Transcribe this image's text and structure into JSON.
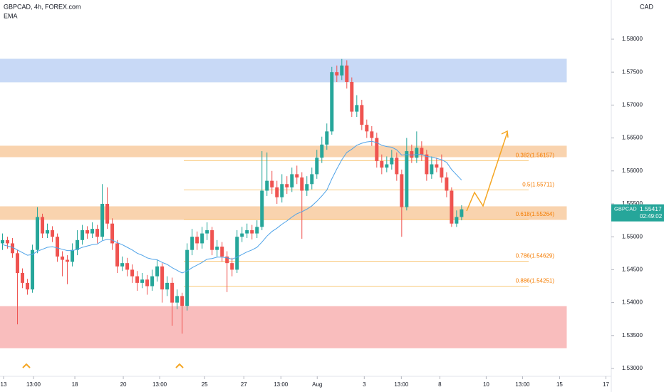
{
  "chart_data": {
    "type": "candlestick",
    "title": "GBPCAD, 4h, FOREX.com",
    "indicator_label": "EMA",
    "axis_title": "CAD",
    "symbol": "GBPCAD",
    "last_price": "1.55417",
    "countdown": "02:49:02",
    "bull_color": "#26a69a",
    "bear_color": "#ef5350",
    "open": [
      1.549,
      1.5495,
      1.549,
      1.5475,
      1.5445,
      1.543,
      1.542,
      1.548,
      1.553,
      1.5505,
      1.551,
      1.55,
      1.547,
      1.5465,
      1.5462,
      1.548,
      1.5495,
      1.551,
      1.5505,
      1.5512,
      1.55,
      1.555,
      1.552,
      1.549,
      1.5455,
      1.546,
      1.545,
      1.544,
      1.543,
      1.5435,
      1.5425,
      1.544,
      1.5455,
      1.542,
      1.543,
      1.54,
      1.541,
      1.5395,
      1.548,
      1.55,
      1.549,
      1.5505,
      1.551,
      1.548,
      1.5485,
      1.547,
      1.546,
      1.545,
      1.55,
      1.5505,
      1.551,
      1.5505,
      1.5515,
      1.557,
      1.5585,
      1.5575,
      1.556,
      1.558,
      1.5575,
      1.5595,
      1.559,
      1.557,
      1.558,
      1.5595,
      1.562,
      1.564,
      1.566,
      1.575,
      1.5745,
      1.576,
      1.5735,
      1.569,
      1.57,
      1.567,
      1.566,
      1.565,
      1.5615,
      1.5605,
      1.561,
      1.562,
      1.5595,
      1.5545,
      1.563,
      1.562,
      1.5635,
      1.5625,
      1.5595,
      1.561,
      1.5605,
      1.559,
      1.557,
      1.552,
      1.553
    ],
    "high": [
      1.5505,
      1.55,
      1.5498,
      1.548,
      1.5452,
      1.5436,
      1.5488,
      1.5545,
      1.5535,
      1.552,
      1.5516,
      1.5505,
      1.5478,
      1.5472,
      1.549,
      1.551,
      1.5518,
      1.5516,
      1.5522,
      1.5518,
      1.558,
      1.5575,
      1.5528,
      1.5495,
      1.547,
      1.5468,
      1.5458,
      1.5448,
      1.5445,
      1.5442,
      1.545,
      1.5465,
      1.546,
      1.544,
      1.5438,
      1.542,
      1.5415,
      1.549,
      1.5512,
      1.5508,
      1.5515,
      1.5522,
      1.5515,
      1.5495,
      1.5492,
      1.5478,
      1.5468,
      1.551,
      1.5515,
      1.552,
      1.5518,
      1.5525,
      1.563,
      1.5628,
      1.56,
      1.5585,
      1.5595,
      1.5592,
      1.5605,
      1.5608,
      1.5598,
      1.5592,
      1.5605,
      1.5632,
      1.5652,
      1.5672,
      1.5758,
      1.576,
      1.577,
      1.5768,
      1.5742,
      1.5715,
      1.5708,
      1.5678,
      1.5668,
      1.5658,
      1.5625,
      1.5622,
      1.5632,
      1.5628,
      1.5602,
      1.565,
      1.564,
      1.566,
      1.5645,
      1.5632,
      1.5622,
      1.562,
      1.5625,
      1.5598,
      1.5575,
      1.554,
      1.5548
    ],
    "low": [
      1.548,
      1.5482,
      1.5468,
      1.5367,
      1.5422,
      1.5412,
      1.5415,
      1.5475,
      1.5498,
      1.5498,
      1.5492,
      1.5462,
      1.544,
      1.5428,
      1.5455,
      1.5472,
      1.5488,
      1.5497,
      1.5498,
      1.549,
      1.5495,
      1.5512,
      1.548,
      1.5445,
      1.5448,
      1.544,
      1.543,
      1.5418,
      1.5422,
      1.5412,
      1.5418,
      1.5432,
      1.54,
      1.541,
      1.5365,
      1.539,
      1.5353,
      1.5388,
      1.5472,
      1.548,
      1.5482,
      1.5495,
      1.5472,
      1.547,
      1.5462,
      1.5416,
      1.544,
      1.5445,
      1.5492,
      1.5498,
      1.5496,
      1.5498,
      1.551,
      1.5562,
      1.5565,
      1.555,
      1.5552,
      1.5565,
      1.5568,
      1.558,
      1.5497,
      1.5562,
      1.5572,
      1.5588,
      1.5612,
      1.5632,
      1.5655,
      1.5735,
      1.5738,
      1.5725,
      1.5682,
      1.5682,
      1.5662,
      1.565,
      1.5638,
      1.5605,
      1.5595,
      1.5598,
      1.5602,
      1.5585,
      1.55,
      1.554,
      1.5612,
      1.5612,
      1.5615,
      1.5585,
      1.5588,
      1.5598,
      1.5582,
      1.556,
      1.5515,
      1.5515,
      1.5525
    ],
    "close": [
      1.5495,
      1.549,
      1.5475,
      1.5445,
      1.543,
      1.542,
      1.548,
      1.553,
      1.5505,
      1.551,
      1.55,
      1.547,
      1.5465,
      1.5462,
      1.548,
      1.5495,
      1.551,
      1.5505,
      1.5512,
      1.55,
      1.555,
      1.552,
      1.549,
      1.5455,
      1.546,
      1.545,
      1.544,
      1.543,
      1.5435,
      1.5425,
      1.544,
      1.5455,
      1.542,
      1.543,
      1.54,
      1.541,
      1.5395,
      1.548,
      1.55,
      1.549,
      1.5505,
      1.551,
      1.548,
      1.5485,
      1.547,
      1.546,
      1.545,
      1.55,
      1.5505,
      1.551,
      1.5505,
      1.5515,
      1.557,
      1.5585,
      1.5575,
      1.556,
      1.558,
      1.5575,
      1.5595,
      1.559,
      1.557,
      1.558,
      1.5595,
      1.562,
      1.564,
      1.566,
      1.575,
      1.5745,
      1.576,
      1.5735,
      1.569,
      1.57,
      1.567,
      1.566,
      1.565,
      1.5615,
      1.5605,
      1.561,
      1.562,
      1.5595,
      1.5545,
      1.563,
      1.562,
      1.5635,
      1.5625,
      1.5595,
      1.561,
      1.5605,
      1.559,
      1.557,
      1.552,
      1.553,
      1.55417
    ],
    "ema": {
      "color": "#4fa3e8",
      "values": [
        1.5488,
        1.5486,
        1.5484,
        1.548,
        1.5476,
        1.5472,
        1.5473,
        1.5478,
        1.5481,
        1.5484,
        1.5485,
        1.5483,
        1.5481,
        1.5479,
        1.5479,
        1.5481,
        1.5484,
        1.5486,
        1.5488,
        1.5489,
        1.5494,
        1.5496,
        1.5495,
        1.5491,
        1.5488,
        1.5484,
        1.548,
        1.5475,
        1.5472,
        1.5468,
        1.5466,
        1.5465,
        1.5461,
        1.5458,
        1.5453,
        1.5449,
        1.5445,
        1.5448,
        1.5453,
        1.5457,
        1.5461,
        1.5466,
        1.5467,
        1.5469,
        1.5469,
        1.5468,
        1.5466,
        1.5469,
        1.5473,
        1.5477,
        1.548,
        1.5484,
        1.5492,
        1.5501,
        1.5508,
        1.5513,
        1.5519,
        1.5524,
        1.553,
        1.5535,
        1.5538,
        1.5542,
        1.5547,
        1.5554,
        1.5562,
        1.5571,
        1.5588,
        1.5603,
        1.5617,
        1.5628,
        1.5633,
        1.5639,
        1.5642,
        1.5644,
        1.5645,
        1.5643,
        1.5639,
        1.5637,
        1.5636,
        1.5632,
        1.5624,
        1.5625,
        1.5624,
        1.5625,
        1.5625,
        1.5622,
        1.5621,
        1.5619,
        1.5617,
        1.5613,
        1.5602,
        1.5594,
        1.5586
      ]
    },
    "zones": [
      {
        "from": 1.57351,
        "to": 1.57697,
        "color": "#c8d9f6"
      },
      {
        "from": 1.56214,
        "to": 1.56377,
        "color": "#f9d3ae"
      },
      {
        "from": 1.55262,
        "to": 1.55457,
        "color": "#f9d3ae"
      },
      {
        "from": 1.53314,
        "to": 1.53942,
        "color": "#f9bdbd"
      }
    ],
    "fib_levels": [
      {
        "price": 1.56157,
        "label": "0.382(1.56157)"
      },
      {
        "price": 1.55711,
        "label": "0.5(1.55711)"
      },
      {
        "price": 1.55264,
        "label": "0.618(1.55264)"
      },
      {
        "price": 1.54629,
        "label": "0.786(1.54629)"
      },
      {
        "price": 1.54251,
        "label": "0.886(1.54251)"
      }
    ],
    "xlim": [
      -0.5,
      122
    ],
    "xticks": [
      {
        "value": 0.21,
        "label": "13"
      },
      {
        "value": 6.21,
        "label": "13:00"
      },
      {
        "value": 14.5,
        "label": "18"
      },
      {
        "value": 24.21,
        "label": "20"
      },
      {
        "value": 31.5,
        "label": "13:00"
      },
      {
        "value": 40.5,
        "label": "25"
      },
      {
        "value": 48.36,
        "label": "27"
      },
      {
        "value": 55.79,
        "label": "13:00"
      },
      {
        "value": 63.07,
        "label": "Aug"
      },
      {
        "value": 72.5,
        "label": "3"
      },
      {
        "value": 79.93,
        "label": "13:00"
      },
      {
        "value": 87.64,
        "label": "8"
      },
      {
        "value": 96.93,
        "label": "10"
      },
      {
        "value": 104.21,
        "label": "13:00"
      },
      {
        "value": 111.64,
        "label": "15"
      },
      {
        "value": 120.93,
        "label": "17"
      }
    ],
    "ylim": [
      1.52881,
      1.58595
    ],
    "yticks": [
      {
        "value": 1.53,
        "label": "1.53000"
      },
      {
        "value": 1.535,
        "label": "1.53500"
      },
      {
        "value": 1.54,
        "label": "1.54000"
      },
      {
        "value": 1.545,
        "label": "1.54500"
      },
      {
        "value": 1.55,
        "label": "1.55000"
      },
      {
        "value": 1.555,
        "label": "1.55500"
      },
      {
        "value": 1.56,
        "label": "1.56000"
      },
      {
        "value": 1.565,
        "label": "1.56500"
      },
      {
        "value": 1.57,
        "label": "1.57000"
      },
      {
        "value": 1.575,
        "label": "1.57500"
      },
      {
        "value": 1.58,
        "label": "1.58000"
      }
    ]
  }
}
